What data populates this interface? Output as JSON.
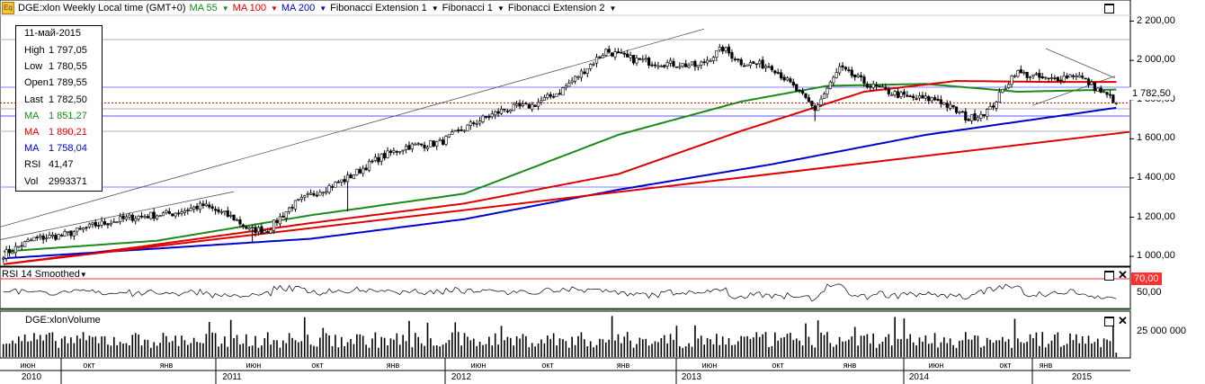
{
  "header": {
    "symbol_title": "DGE:xlon Weekly Local time (GMT+0)",
    "ma55": "MA 55",
    "ma100": "MA 100",
    "ma200": "MA 200",
    "fib_ext1": "Fibonacci Extension 1",
    "fib1": "Fibonacci 1",
    "fib_ext2": "Fibonacci Extension 2"
  },
  "infobox": {
    "date": "11-май-2015",
    "rows": [
      {
        "k": "High",
        "v": "1 797,05",
        "color": "#000000"
      },
      {
        "k": "Low",
        "v": "1 780,55",
        "color": "#000000"
      },
      {
        "k": "Open",
        "v": "1 789,55",
        "color": "#000000"
      },
      {
        "k": "Last",
        "v": "1 782,50",
        "color": "#000000"
      },
      {
        "k": "MA",
        "v": "1 851,27",
        "color": "#1a8a1a"
      },
      {
        "k": "MA",
        "v": "1 890,21",
        "color": "#e00000"
      },
      {
        "k": "MA",
        "v": "1 758,04",
        "color": "#0000cc"
      },
      {
        "k": "RSI",
        "v": "41,47",
        "color": "#000000"
      },
      {
        "k": "Vol",
        "v": "2993371",
        "color": "#000000"
      }
    ]
  },
  "price_axis": [
    "2 200,00",
    "2 000,00",
    "1 800,00",
    "1 600,00",
    "1 400,00",
    "1 200,00",
    "1 000,00"
  ],
  "last_price_tag": "1 782,50",
  "rsi_pane": {
    "title": "RSI 14 Smoothed",
    "level_70": "70,00",
    "level_50": "50,00"
  },
  "volume_pane": {
    "title": "DGE:xlonVolume",
    "axis_label": "25 000 000"
  },
  "x_axis": {
    "months": [
      "июн",
      "окт",
      "янв",
      "июн",
      "окт",
      "янв",
      "июн",
      "окт",
      "янв",
      "июн",
      "окт",
      "янв",
      "июн",
      "окт",
      "янв"
    ],
    "years": [
      "2010",
      "2011",
      "2012",
      "2013",
      "2014",
      "2015"
    ]
  },
  "colors": {
    "ma55": "#1a8a1a",
    "ma100": "#e00000",
    "ma200": "#0000cc",
    "tag_bg": "#ff3030",
    "grid": "#b8b8b8"
  },
  "chart_data": {
    "type": "candlestick",
    "title": "DGE:xlon Weekly",
    "timeframe": "weekly, Apr 2010 – May 2015",
    "ylim": [
      950,
      2230
    ],
    "y_ticks": [
      1000,
      1200,
      1400,
      1600,
      1800,
      2000,
      2200
    ],
    "close_anchors": [
      [
        0,
        1010
      ],
      [
        10,
        1090
      ],
      [
        20,
        1110
      ],
      [
        30,
        1160
      ],
      [
        42,
        1200
      ],
      [
        55,
        1220
      ],
      [
        65,
        1260
      ],
      [
        75,
        1195
      ],
      [
        80,
        1135
      ],
      [
        86,
        1135
      ],
      [
        94,
        1260
      ],
      [
        102,
        1330
      ],
      [
        111,
        1390
      ],
      [
        122,
        1500
      ],
      [
        131,
        1560
      ],
      [
        142,
        1580
      ],
      [
        153,
        1680
      ],
      [
        163,
        1750
      ],
      [
        172,
        1770
      ],
      [
        181,
        1840
      ],
      [
        189,
        1950
      ],
      [
        196,
        2050
      ],
      [
        203,
        2010
      ],
      [
        211,
        1990
      ],
      [
        220,
        1980
      ],
      [
        226,
        1970
      ],
      [
        234,
        2060
      ],
      [
        240,
        1990
      ],
      [
        250,
        1970
      ],
      [
        256,
        1880
      ],
      [
        264,
        1750
      ],
      [
        272,
        1960
      ],
      [
        282,
        1870
      ],
      [
        294,
        1810
      ],
      [
        304,
        1800
      ],
      [
        314,
        1700
      ],
      [
        321,
        1750
      ],
      [
        329,
        1940
      ],
      [
        340,
        1900
      ],
      [
        349,
        1930
      ],
      [
        357,
        1840
      ],
      [
        362,
        1790
      ]
    ],
    "last_close": 1782.5,
    "moving_averages": [
      {
        "name": "MA 55",
        "color": "#1a8a1a",
        "anchors": [
          [
            0,
            1025
          ],
          [
            50,
            1080
          ],
          [
            100,
            1210
          ],
          [
            150,
            1320
          ],
          [
            200,
            1620
          ],
          [
            240,
            1790
          ],
          [
            268,
            1870
          ],
          [
            300,
            1880
          ],
          [
            330,
            1840
          ],
          [
            362,
            1851.27
          ]
        ]
      },
      {
        "name": "MA 100",
        "color": "#e00000",
        "anchors": [
          [
            0,
            960
          ],
          [
            45,
            1050
          ],
          [
            100,
            1170
          ],
          [
            150,
            1270
          ],
          [
            200,
            1420
          ],
          [
            240,
            1640
          ],
          [
            280,
            1840
          ],
          [
            310,
            1895
          ],
          [
            340,
            1890
          ],
          [
            362,
            1890.21
          ]
        ]
      },
      {
        "name": "MA 200",
        "color": "#0000cc",
        "anchors": [
          [
            0,
            990
          ],
          [
            100,
            1090
          ],
          [
            150,
            1190
          ],
          [
            200,
            1340
          ],
          [
            250,
            1470
          ],
          [
            300,
            1620
          ],
          [
            362,
            1758.04
          ]
        ]
      }
    ],
    "rsi": {
      "name": "RSI 14 Smoothed",
      "last": 41.47,
      "levels": [
        70,
        50
      ]
    },
    "volume": {
      "name": "DGE:xlonVolume",
      "last": 2993371,
      "axis_tick": 25000000
    }
  }
}
